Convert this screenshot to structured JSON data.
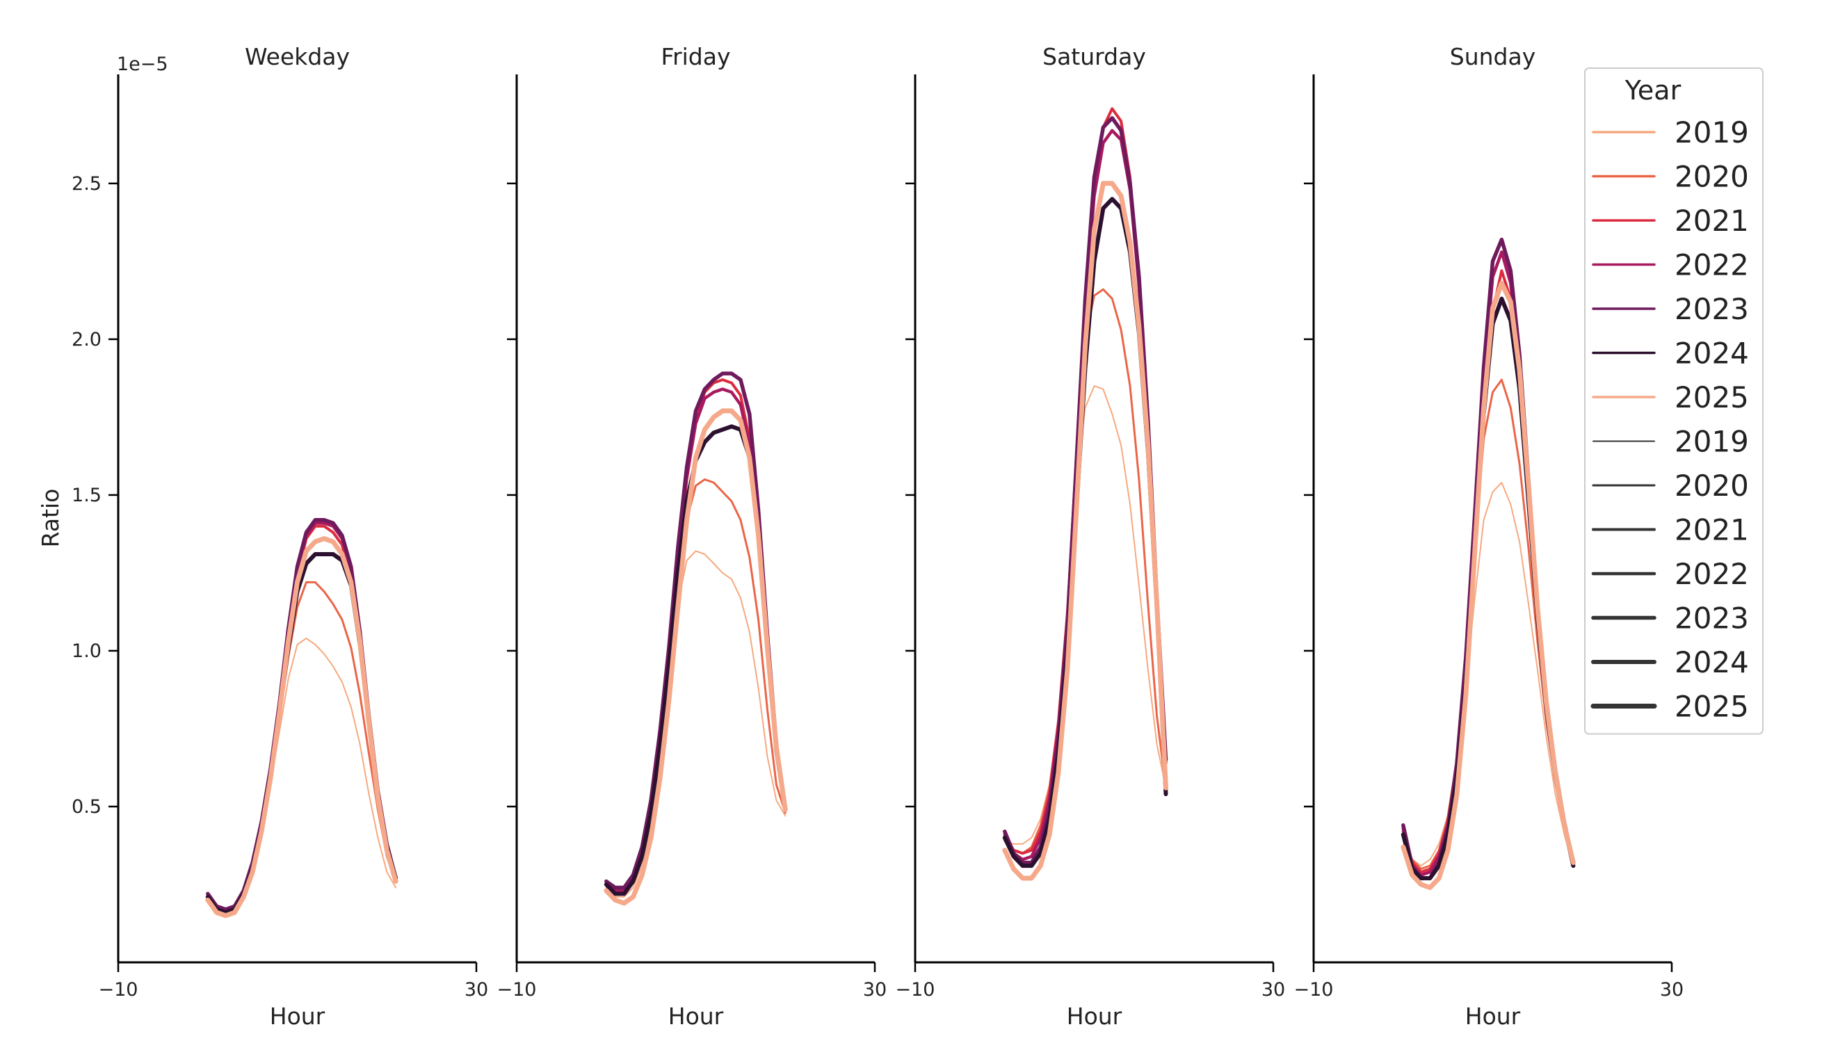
{
  "chart_data": {
    "type": "line",
    "ylabel": "Ratio",
    "xlabel": "Hour",
    "y_offset_text": "1e−5",
    "xlim": [
      -10,
      30
    ],
    "ylim": [
      0.0,
      2.85
    ],
    "xticks": [
      -10,
      30
    ],
    "xtick_labels": [
      "−10",
      "30"
    ],
    "yticks": [
      0.5,
      1.0,
      1.5,
      2.0,
      2.5
    ],
    "ytick_labels": [
      "0.5",
      "1.0",
      "1.5",
      "2.0",
      "2.5"
    ],
    "x": [
      0,
      1,
      2,
      3,
      4,
      5,
      6,
      7,
      8,
      9,
      10,
      11,
      12,
      13,
      14,
      15,
      16,
      17,
      18,
      19,
      20,
      21,
      22,
      23
    ],
    "colors": {
      "2019": "#f6a97f",
      "2020": "#ea6548",
      "2021": "#dc2b3f",
      "2022": "#a8195f",
      "2023": "#6f1a5c",
      "2024": "#2b112f",
      "2025": "#f5a98a"
    },
    "widths": {
      "2019": 2.0,
      "2020": 3.0,
      "2021": 4.0,
      "2022": 4.5,
      "2023": 5.5,
      "2024": 6.0,
      "2025": 7.0
    },
    "panels": [
      {
        "title": "Weekday",
        "series": [
          {
            "name": "2019",
            "values": [
              0.2,
              0.16,
              0.15,
              0.17,
              0.22,
              0.3,
              0.42,
              0.57,
              0.74,
              0.91,
              1.02,
              1.04,
              1.02,
              0.99,
              0.95,
              0.9,
              0.82,
              0.7,
              0.54,
              0.4,
              0.29,
              0.24,
              null,
              null
            ]
          },
          {
            "name": "2020",
            "values": [
              0.21,
              0.17,
              0.16,
              0.17,
              0.22,
              0.3,
              0.43,
              0.59,
              0.78,
              0.98,
              1.14,
              1.22,
              1.22,
              1.19,
              1.15,
              1.1,
              1.01,
              0.86,
              0.67,
              0.49,
              0.34,
              0.26,
              null,
              null
            ]
          },
          {
            "name": "2021",
            "values": [
              0.21,
              0.17,
              0.16,
              0.17,
              0.22,
              0.31,
              0.44,
              0.61,
              0.82,
              1.05,
              1.24,
              1.36,
              1.4,
              1.4,
              1.38,
              1.34,
              1.23,
              1.02,
              0.76,
              0.53,
              0.37,
              0.27,
              null,
              null
            ]
          },
          {
            "name": "2022",
            "values": [
              0.21,
              0.17,
              0.16,
              0.17,
              0.22,
              0.31,
              0.44,
              0.61,
              0.82,
              1.06,
              1.26,
              1.37,
              1.41,
              1.41,
              1.4,
              1.36,
              1.26,
              1.05,
              0.78,
              0.54,
              0.37,
              0.27,
              null,
              null
            ]
          },
          {
            "name": "2023",
            "values": [
              0.22,
              0.18,
              0.17,
              0.18,
              0.23,
              0.32,
              0.45,
              0.62,
              0.83,
              1.07,
              1.27,
              1.38,
              1.42,
              1.42,
              1.41,
              1.37,
              1.27,
              1.06,
              0.79,
              0.55,
              0.38,
              0.27,
              null,
              null
            ]
          },
          {
            "name": "2024",
            "values": [
              0.21,
              0.17,
              0.16,
              0.17,
              0.22,
              0.3,
              0.43,
              0.6,
              0.8,
              1.01,
              1.19,
              1.28,
              1.31,
              1.31,
              1.31,
              1.29,
              1.21,
              1.02,
              0.77,
              0.53,
              0.37,
              0.27,
              null,
              null
            ]
          },
          {
            "name": "2025",
            "values": [
              0.2,
              0.16,
              0.15,
              0.16,
              0.21,
              0.29,
              0.42,
              0.59,
              0.8,
              1.03,
              1.22,
              1.32,
              1.35,
              1.36,
              1.35,
              1.31,
              1.22,
              1.03,
              0.77,
              0.53,
              0.36,
              0.26,
              null,
              null
            ]
          }
        ]
      },
      {
        "title": "Friday",
        "series": [
          {
            "name": "2019",
            "values": [
              0.24,
              0.21,
              0.21,
              0.24,
              0.31,
              0.44,
              0.63,
              0.88,
              1.15,
              1.29,
              1.32,
              1.31,
              1.28,
              1.25,
              1.23,
              1.17,
              1.06,
              0.88,
              0.66,
              0.52,
              0.47,
              null,
              null,
              null
            ]
          },
          {
            "name": "2020",
            "values": [
              0.25,
              0.23,
              0.23,
              0.26,
              0.34,
              0.47,
              0.67,
              0.92,
              1.21,
              1.42,
              1.53,
              1.55,
              1.54,
              1.51,
              1.48,
              1.42,
              1.3,
              1.1,
              0.81,
              0.57,
              0.48,
              null,
              null,
              null
            ]
          },
          {
            "name": "2021",
            "values": [
              0.25,
              0.23,
              0.23,
              0.27,
              0.36,
              0.5,
              0.71,
              0.98,
              1.29,
              1.55,
              1.73,
              1.83,
              1.86,
              1.87,
              1.86,
              1.82,
              1.68,
              1.4,
              1.02,
              0.68,
              0.49,
              null,
              null,
              null
            ]
          },
          {
            "name": "2022",
            "values": [
              0.25,
              0.23,
              0.23,
              0.27,
              0.36,
              0.51,
              0.72,
              0.99,
              1.3,
              1.56,
              1.73,
              1.81,
              1.83,
              1.84,
              1.83,
              1.79,
              1.66,
              1.39,
              1.02,
              0.68,
              0.49,
              null,
              null,
              null
            ]
          },
          {
            "name": "2023",
            "values": [
              0.26,
              0.24,
              0.24,
              0.28,
              0.37,
              0.52,
              0.74,
              1.01,
              1.33,
              1.59,
              1.77,
              1.84,
              1.87,
              1.89,
              1.89,
              1.87,
              1.76,
              1.45,
              1.05,
              0.7,
              0.49,
              null,
              null,
              null
            ]
          },
          {
            "name": "2024",
            "values": [
              0.25,
              0.22,
              0.22,
              0.26,
              0.34,
              0.48,
              0.69,
              0.95,
              1.25,
              1.48,
              1.61,
              1.67,
              1.7,
              1.71,
              1.72,
              1.71,
              1.62,
              1.38,
              1.01,
              0.68,
              0.49,
              null,
              null,
              null
            ]
          },
          {
            "name": "2025",
            "values": [
              0.23,
              0.2,
              0.19,
              0.21,
              0.28,
              0.4,
              0.59,
              0.84,
              1.14,
              1.42,
              1.62,
              1.71,
              1.75,
              1.77,
              1.77,
              1.74,
              1.62,
              1.37,
              1.01,
              0.69,
              0.49,
              null,
              null,
              null
            ]
          }
        ]
      },
      {
        "title": "Saturday",
        "series": [
          {
            "name": "2019",
            "values": [
              0.39,
              0.38,
              0.38,
              0.4,
              0.46,
              0.57,
              0.78,
              1.12,
              1.55,
              1.78,
              1.85,
              1.84,
              1.76,
              1.66,
              1.47,
              1.21,
              0.94,
              0.7,
              0.56,
              null,
              null,
              null,
              null,
              null
            ]
          },
          {
            "name": "2020",
            "values": [
              0.39,
              0.36,
              0.35,
              0.37,
              0.44,
              0.56,
              0.78,
              1.12,
              1.6,
              2.0,
              2.14,
              2.16,
              2.13,
              2.03,
              1.85,
              1.55,
              1.15,
              0.79,
              0.56,
              null,
              null,
              null,
              null,
              null
            ]
          },
          {
            "name": "2021",
            "values": [
              0.41,
              0.36,
              0.35,
              0.36,
              0.42,
              0.54,
              0.77,
              1.12,
              1.62,
              2.11,
              2.49,
              2.68,
              2.74,
              2.7,
              2.52,
              2.19,
              1.72,
              1.15,
              0.65,
              null,
              null,
              null,
              null,
              null
            ]
          },
          {
            "name": "2022",
            "values": [
              0.41,
              0.35,
              0.33,
              0.34,
              0.4,
              0.52,
              0.75,
              1.1,
              1.6,
              2.1,
              2.46,
              2.63,
              2.67,
              2.64,
              2.48,
              2.17,
              1.71,
              1.15,
              0.64,
              null,
              null,
              null,
              null,
              null
            ]
          },
          {
            "name": "2023",
            "values": [
              0.42,
              0.35,
              0.32,
              0.32,
              0.37,
              0.49,
              0.72,
              1.08,
              1.6,
              2.13,
              2.52,
              2.68,
              2.71,
              2.67,
              2.5,
              2.2,
              1.74,
              1.17,
              0.65,
              null,
              null,
              null,
              null,
              null
            ]
          },
          {
            "name": "2024",
            "values": [
              0.4,
              0.34,
              0.31,
              0.31,
              0.35,
              0.46,
              0.67,
              1.0,
              1.45,
              1.91,
              2.25,
              2.42,
              2.45,
              2.42,
              2.28,
              2.02,
              1.64,
              1.14,
              0.54,
              null,
              null,
              null,
              null,
              null
            ]
          },
          {
            "name": "2025",
            "values": [
              0.36,
              0.3,
              0.27,
              0.27,
              0.31,
              0.41,
              0.61,
              0.94,
              1.45,
              1.98,
              2.35,
              2.5,
              2.5,
              2.46,
              2.31,
              2.04,
              1.66,
              1.15,
              0.56,
              null,
              null,
              null,
              null,
              null
            ]
          }
        ]
      },
      {
        "title": "Sunday",
        "series": [
          {
            "name": "2019",
            "values": [
              0.39,
              0.33,
              0.31,
              0.33,
              0.38,
              0.47,
              0.63,
              0.89,
              1.17,
              1.42,
              1.51,
              1.54,
              1.47,
              1.35,
              1.15,
              0.94,
              0.72,
              0.54,
              0.41,
              0.31,
              null,
              null,
              null,
              null
            ]
          },
          {
            "name": "2020",
            "values": [
              0.4,
              0.33,
              0.3,
              0.31,
              0.36,
              0.47,
              0.65,
              0.95,
              1.33,
              1.68,
              1.83,
              1.87,
              1.78,
              1.6,
              1.33,
              1.03,
              0.77,
              0.58,
              0.43,
              0.32,
              null,
              null,
              null,
              null
            ]
          },
          {
            "name": "2021",
            "values": [
              0.42,
              0.32,
              0.29,
              0.3,
              0.35,
              0.45,
              0.63,
              0.94,
              1.36,
              1.78,
              2.09,
              2.22,
              2.13,
              1.88,
              1.5,
              1.12,
              0.82,
              0.6,
              0.44,
              0.32,
              null,
              null,
              null,
              null
            ]
          },
          {
            "name": "2022",
            "values": [
              0.43,
              0.31,
              0.28,
              0.29,
              0.34,
              0.44,
              0.63,
              0.96,
              1.42,
              1.88,
              2.2,
              2.28,
              2.18,
              1.92,
              1.53,
              1.14,
              0.83,
              0.61,
              0.45,
              0.32,
              null,
              null,
              null,
              null
            ]
          },
          {
            "name": "2023",
            "values": [
              0.44,
              0.31,
              0.27,
              0.27,
              0.32,
              0.43,
              0.64,
              0.98,
              1.44,
              1.91,
              2.25,
              2.32,
              2.22,
              1.95,
              1.55,
              1.15,
              0.84,
              0.62,
              0.45,
              0.32,
              null,
              null,
              null,
              null
            ]
          },
          {
            "name": "2024",
            "values": [
              0.41,
              0.3,
              0.27,
              0.27,
              0.31,
              0.41,
              0.59,
              0.9,
              1.33,
              1.76,
              2.05,
              2.13,
              2.06,
              1.84,
              1.48,
              1.11,
              0.81,
              0.6,
              0.44,
              0.31,
              null,
              null,
              null,
              null
            ]
          },
          {
            "name": "2025",
            "values": [
              0.37,
              0.28,
              0.25,
              0.24,
              0.27,
              0.36,
              0.54,
              0.86,
              1.32,
              1.78,
              2.1,
              2.18,
              2.12,
              1.9,
              1.53,
              1.14,
              0.83,
              0.61,
              0.44,
              0.32,
              null,
              null,
              null,
              null
            ]
          }
        ]
      }
    ],
    "legend": {
      "title": "Year",
      "placement": "upper-right",
      "hue_entries": [
        "2019",
        "2020",
        "2021",
        "2022",
        "2023",
        "2024",
        "2025"
      ],
      "size_entries": [
        "2019",
        "2020",
        "2021",
        "2022",
        "2023",
        "2024",
        "2025"
      ],
      "size_entry_color": "#333333"
    }
  }
}
